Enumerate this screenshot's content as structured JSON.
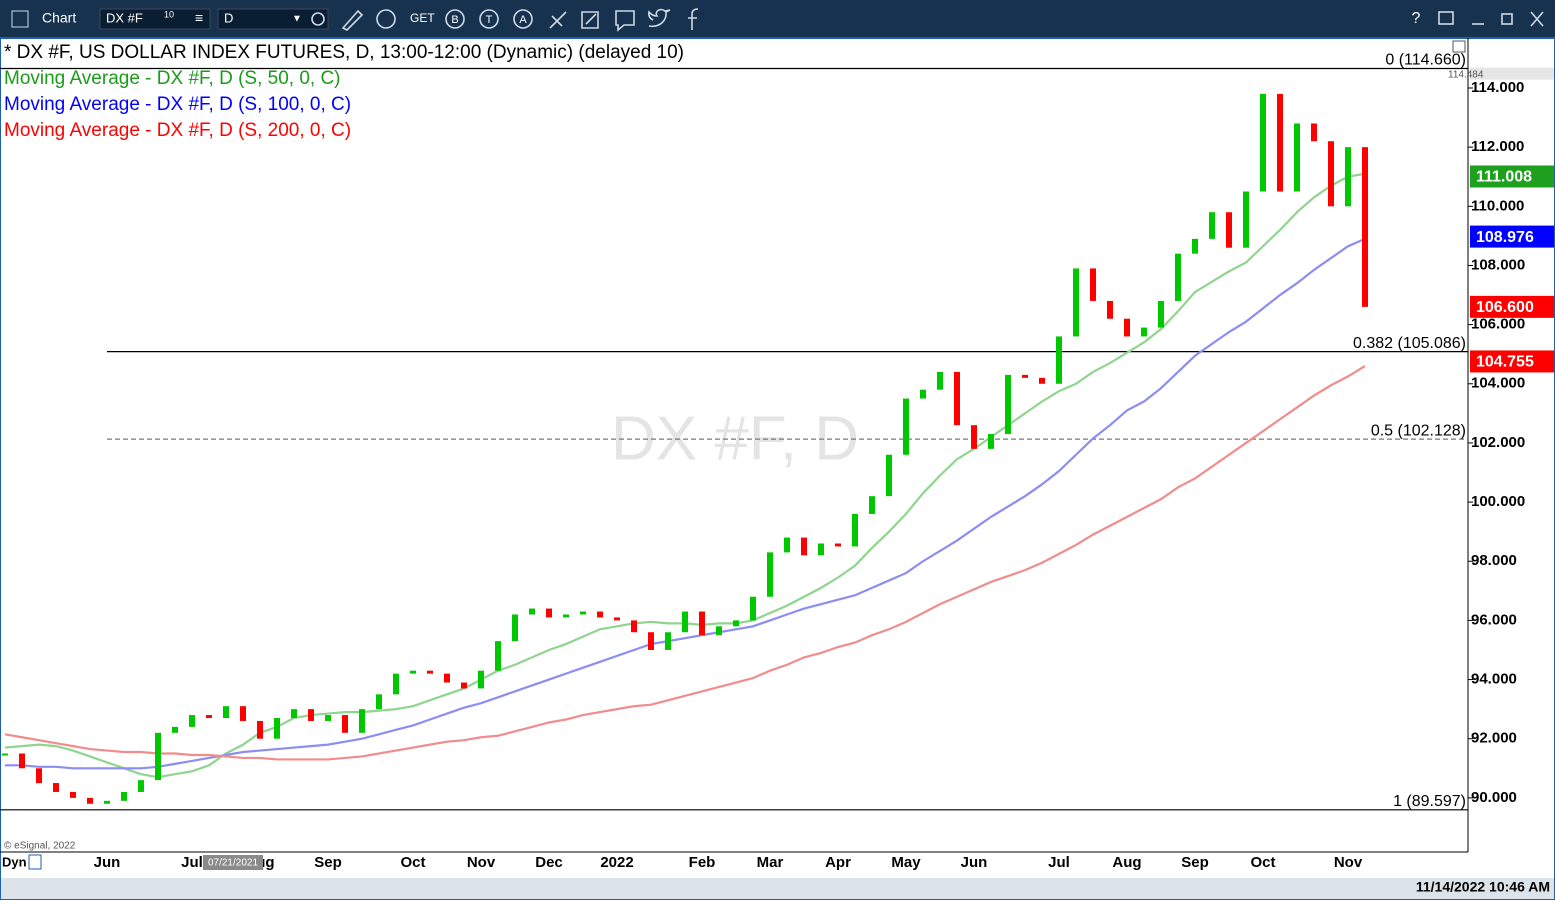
{
  "toolbar": {
    "title": "Chart",
    "symbol": "DX #F",
    "symbol_badge": "10",
    "interval": "D",
    "buttons": [
      "GET",
      "B",
      "T",
      "A"
    ],
    "help": "?"
  },
  "status": {
    "dyn": "Dyn",
    "cursor_date": "07/21/2021",
    "datetime": "11/14/2022 10:46 AM",
    "credit": "© eSignal, 2022"
  },
  "chart_data": {
    "type": "candlestick",
    "title": "* DX #F, US DOLLAR INDEX FUTURES, D, 13:00-12:00 (Dynamic) (delayed 10)",
    "watermark": "DX #F, D",
    "up_color": "#00c800",
    "down_color": "#ff0000",
    "categories": [
      null,
      null,
      null,
      null,
      null,
      null,
      "Jun",
      null,
      null,
      null,
      null,
      "Jul",
      null,
      null,
      null,
      "Aug",
      null,
      null,
      null,
      "Sep",
      null,
      null,
      null,
      null,
      "Oct",
      null,
      null,
      null,
      "Nov",
      null,
      null,
      null,
      "Dec",
      null,
      null,
      null,
      "2022",
      null,
      null,
      null,
      null,
      "Feb",
      null,
      null,
      null,
      "Mar",
      null,
      null,
      null,
      "Apr",
      null,
      null,
      null,
      "May",
      null,
      null,
      null,
      "Jun",
      null,
      null,
      null,
      null,
      "Jul",
      null,
      null,
      null,
      "Aug",
      null,
      null,
      null,
      "Sep",
      null,
      null,
      null,
      "Oct",
      null,
      null,
      null,
      null,
      "Nov",
      null
    ],
    "values": [
      91.5,
      91.0,
      90.5,
      90.2,
      90.0,
      89.8,
      89.9,
      90.2,
      90.6,
      92.2,
      92.4,
      92.8,
      92.7,
      93.1,
      92.6,
      92.0,
      92.7,
      93.0,
      92.6,
      92.8,
      92.2,
      93.0,
      93.5,
      94.2,
      94.3,
      94.2,
      93.9,
      93.7,
      94.3,
      95.3,
      96.2,
      96.4,
      96.1,
      96.2,
      96.3,
      96.1,
      96.0,
      95.6,
      95.0,
      95.6,
      96.3,
      95.5,
      95.8,
      96.0,
      96.8,
      98.3,
      98.8,
      98.2,
      98.6,
      98.5,
      99.6,
      100.2,
      101.6,
      103.5,
      103.8,
      104.4,
      102.6,
      101.8,
      102.3,
      104.3,
      104.2,
      104.0,
      105.6,
      107.9,
      106.8,
      106.2,
      105.6,
      105.9,
      106.8,
      108.4,
      108.9,
      109.8,
      108.6,
      110.5,
      113.8,
      110.5,
      112.8,
      112.2,
      110.0,
      112.0,
      106.6
    ],
    "series": [
      {
        "name": "Moving Average - DX #F, D (S, 50, 0, C)",
        "color": "#8fd48f",
        "text_color": "#1a9c1a",
        "values": [
          91.7,
          91.75,
          91.8,
          91.75,
          91.6,
          91.4,
          91.2,
          91.0,
          90.8,
          90.7,
          90.8,
          90.9,
          91.1,
          91.5,
          91.8,
          92.2,
          92.4,
          92.7,
          92.8,
          92.85,
          92.9,
          92.9,
          92.95,
          93.0,
          93.1,
          93.3,
          93.5,
          93.7,
          94.0,
          94.3,
          94.5,
          94.75,
          95.0,
          95.2,
          95.45,
          95.7,
          95.8,
          95.9,
          95.95,
          95.9,
          95.9,
          95.85,
          95.9,
          95.9,
          96.0,
          96.25,
          96.5,
          96.8,
          97.1,
          97.45,
          97.85,
          98.45,
          99.0,
          99.6,
          100.3,
          100.9,
          101.45,
          101.8,
          102.2,
          102.6,
          103.0,
          103.4,
          103.75,
          104.0,
          104.4,
          104.7,
          105.05,
          105.4,
          105.85,
          106.45,
          107.1,
          107.45,
          107.8,
          108.1,
          108.65,
          109.2,
          109.8,
          110.3,
          110.7,
          111.0,
          111.1
        ]
      },
      {
        "name": "Moving Average - DX #F, D (S, 100, 0, C)",
        "color": "#8c8cf5",
        "text_color": "#0000ff",
        "values": [
          91.1,
          91.1,
          91.05,
          91.05,
          91.0,
          91.0,
          91.0,
          91.0,
          91.0,
          91.05,
          91.15,
          91.25,
          91.35,
          91.45,
          91.55,
          91.6,
          91.65,
          91.7,
          91.75,
          91.8,
          91.9,
          92.0,
          92.15,
          92.3,
          92.45,
          92.65,
          92.85,
          93.05,
          93.2,
          93.4,
          93.6,
          93.8,
          94.0,
          94.2,
          94.4,
          94.6,
          94.8,
          95.0,
          95.2,
          95.3,
          95.4,
          95.5,
          95.6,
          95.7,
          95.8,
          96.0,
          96.2,
          96.4,
          96.55,
          96.7,
          96.85,
          97.1,
          97.35,
          97.6,
          98.0,
          98.35,
          98.7,
          99.1,
          99.5,
          99.85,
          100.2,
          100.6,
          101.05,
          101.6,
          102.15,
          102.6,
          103.1,
          103.4,
          103.85,
          104.4,
          104.95,
          105.35,
          105.75,
          106.1,
          106.55,
          107.0,
          107.4,
          107.85,
          108.25,
          108.65,
          108.9
        ]
      },
      {
        "name": "Moving Average - DX #F, D (S, 200, 0, C)",
        "color": "#f28c8c",
        "text_color": "#ff0000",
        "values": [
          92.15,
          92.05,
          91.95,
          91.85,
          91.75,
          91.65,
          91.6,
          91.55,
          91.55,
          91.5,
          91.5,
          91.45,
          91.45,
          91.4,
          91.35,
          91.35,
          91.3,
          91.3,
          91.3,
          91.3,
          91.35,
          91.4,
          91.5,
          91.6,
          91.7,
          91.8,
          91.9,
          91.95,
          92.05,
          92.1,
          92.25,
          92.4,
          92.55,
          92.65,
          92.8,
          92.9,
          93.0,
          93.1,
          93.15,
          93.3,
          93.45,
          93.6,
          93.75,
          93.9,
          94.05,
          94.3,
          94.5,
          94.75,
          94.9,
          95.1,
          95.25,
          95.5,
          95.7,
          95.95,
          96.25,
          96.55,
          96.8,
          97.05,
          97.3,
          97.5,
          97.7,
          97.95,
          98.25,
          98.55,
          98.9,
          99.2,
          99.5,
          99.8,
          100.1,
          100.5,
          100.8,
          101.2,
          101.6,
          102.0,
          102.4,
          102.8,
          103.2,
          103.6,
          103.95,
          104.25,
          104.6
        ]
      }
    ],
    "ylim": [
      88.17,
      115.69
    ],
    "yticks": [
      {
        "value": 90,
        "label": "90.000"
      },
      {
        "value": 92,
        "label": "92.000"
      },
      {
        "value": 94,
        "label": "94.000"
      },
      {
        "value": 96,
        "label": "96.000"
      },
      {
        "value": 98,
        "label": "98.000"
      },
      {
        "value": 100,
        "label": "100.000"
      },
      {
        "value": 102,
        "label": "102.000"
      },
      {
        "value": 104,
        "label": "104.000"
      },
      {
        "value": 106,
        "label": "106.000"
      },
      {
        "value": 108,
        "label": "108.000"
      },
      {
        "value": 110,
        "label": "110.000"
      },
      {
        "value": 112,
        "label": "112.000"
      },
      {
        "value": 114,
        "label": "114.000"
      }
    ],
    "levels": [
      {
        "value": 114.66,
        "label": "0 (114.660)",
        "dashed": false
      },
      {
        "value": 105.086,
        "label": "0.382 (105.086)",
        "dashed": false
      },
      {
        "value": 102.128,
        "label": "0.5 (102.128)",
        "dashed": true
      },
      {
        "value": 89.597,
        "label": "1 (89.597)",
        "dashed": false
      }
    ],
    "price_tags": [
      {
        "value": 114.484,
        "label": "114.484",
        "color": "#e6e6e6",
        "text_color": "#555555",
        "small": true
      },
      {
        "value": 111.008,
        "label": "111.008",
        "color": "#1ea01e",
        "text_color": "#ffffff",
        "small": false
      },
      {
        "value": 108.976,
        "label": "108.976",
        "color": "#0000ff",
        "text_color": "#ffffff",
        "small": false
      },
      {
        "value": 106.6,
        "label": "106.600",
        "color": "#ff0000",
        "text_color": "#ffffff",
        "small": false
      },
      {
        "value": 104.755,
        "label": "104.755",
        "color": "#ff0000",
        "text_color": "#ffffff",
        "small": false
      }
    ]
  }
}
